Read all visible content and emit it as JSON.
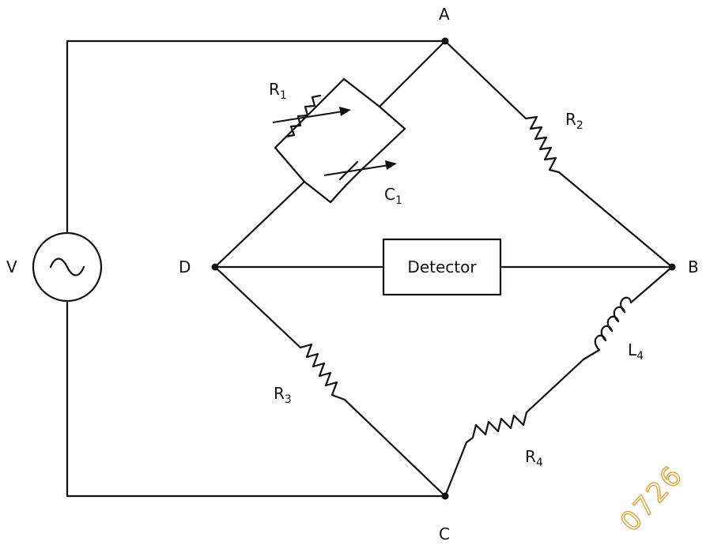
{
  "nodes": {
    "a": "A",
    "b": "B",
    "c": "C",
    "d": "D"
  },
  "source": {
    "label": "V",
    "symbol": "~"
  },
  "components": {
    "r1": {
      "letter": "R",
      "sub": "1"
    },
    "c1": {
      "letter": "C",
      "sub": "1"
    },
    "r2": {
      "letter": "R",
      "sub": "2"
    },
    "r3": {
      "letter": "R",
      "sub": "3"
    },
    "r4": {
      "letter": "R",
      "sub": "4"
    },
    "l4": {
      "letter": "L",
      "sub": "4"
    }
  },
  "detector": {
    "label": "Detector"
  },
  "watermark": "0726",
  "colors": {
    "line": "#111111",
    "watermark": "#e39a2d"
  }
}
